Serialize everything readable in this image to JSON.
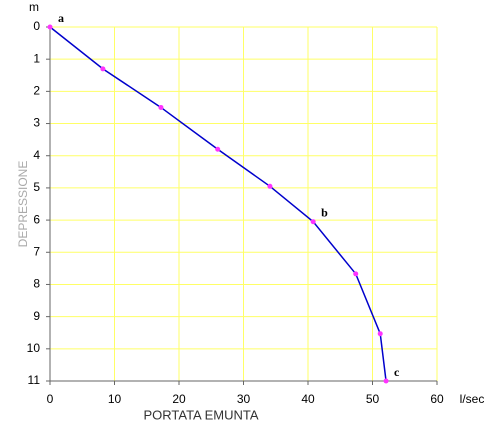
{
  "chart_data": {
    "type": "line",
    "x_label": "PORTATA EMUNTA",
    "y_label": "DEPRESSIONE",
    "x_unit": "l/sec",
    "y_unit": "m",
    "x": [
      0,
      8.2,
      17.2,
      26,
      34.1,
      40.8,
      47.4,
      51.2,
      52.1
    ],
    "values": [
      0,
      1.3,
      2.5,
      3.8,
      4.95,
      6.05,
      7.67,
      9.53,
      11
    ],
    "color": "#0000cc",
    "marker_color": "#ff33ff",
    "xlim": [
      0,
      60
    ],
    "xticks": [
      0,
      10,
      20,
      30,
      40,
      50,
      60
    ],
    "ylim": [
      0,
      11
    ],
    "yticks": [
      0,
      1,
      2,
      3,
      4,
      5,
      6,
      7,
      8,
      9,
      10,
      11
    ],
    "y_inverted": true,
    "grid": true,
    "grid_color": "#ffff66",
    "annotations": [
      {
        "text": "a",
        "x": 0,
        "y": 0
      },
      {
        "text": "b",
        "x": 40.8,
        "y": 6.05
      },
      {
        "text": "c",
        "x": 52.1,
        "y": 11
      }
    ]
  }
}
